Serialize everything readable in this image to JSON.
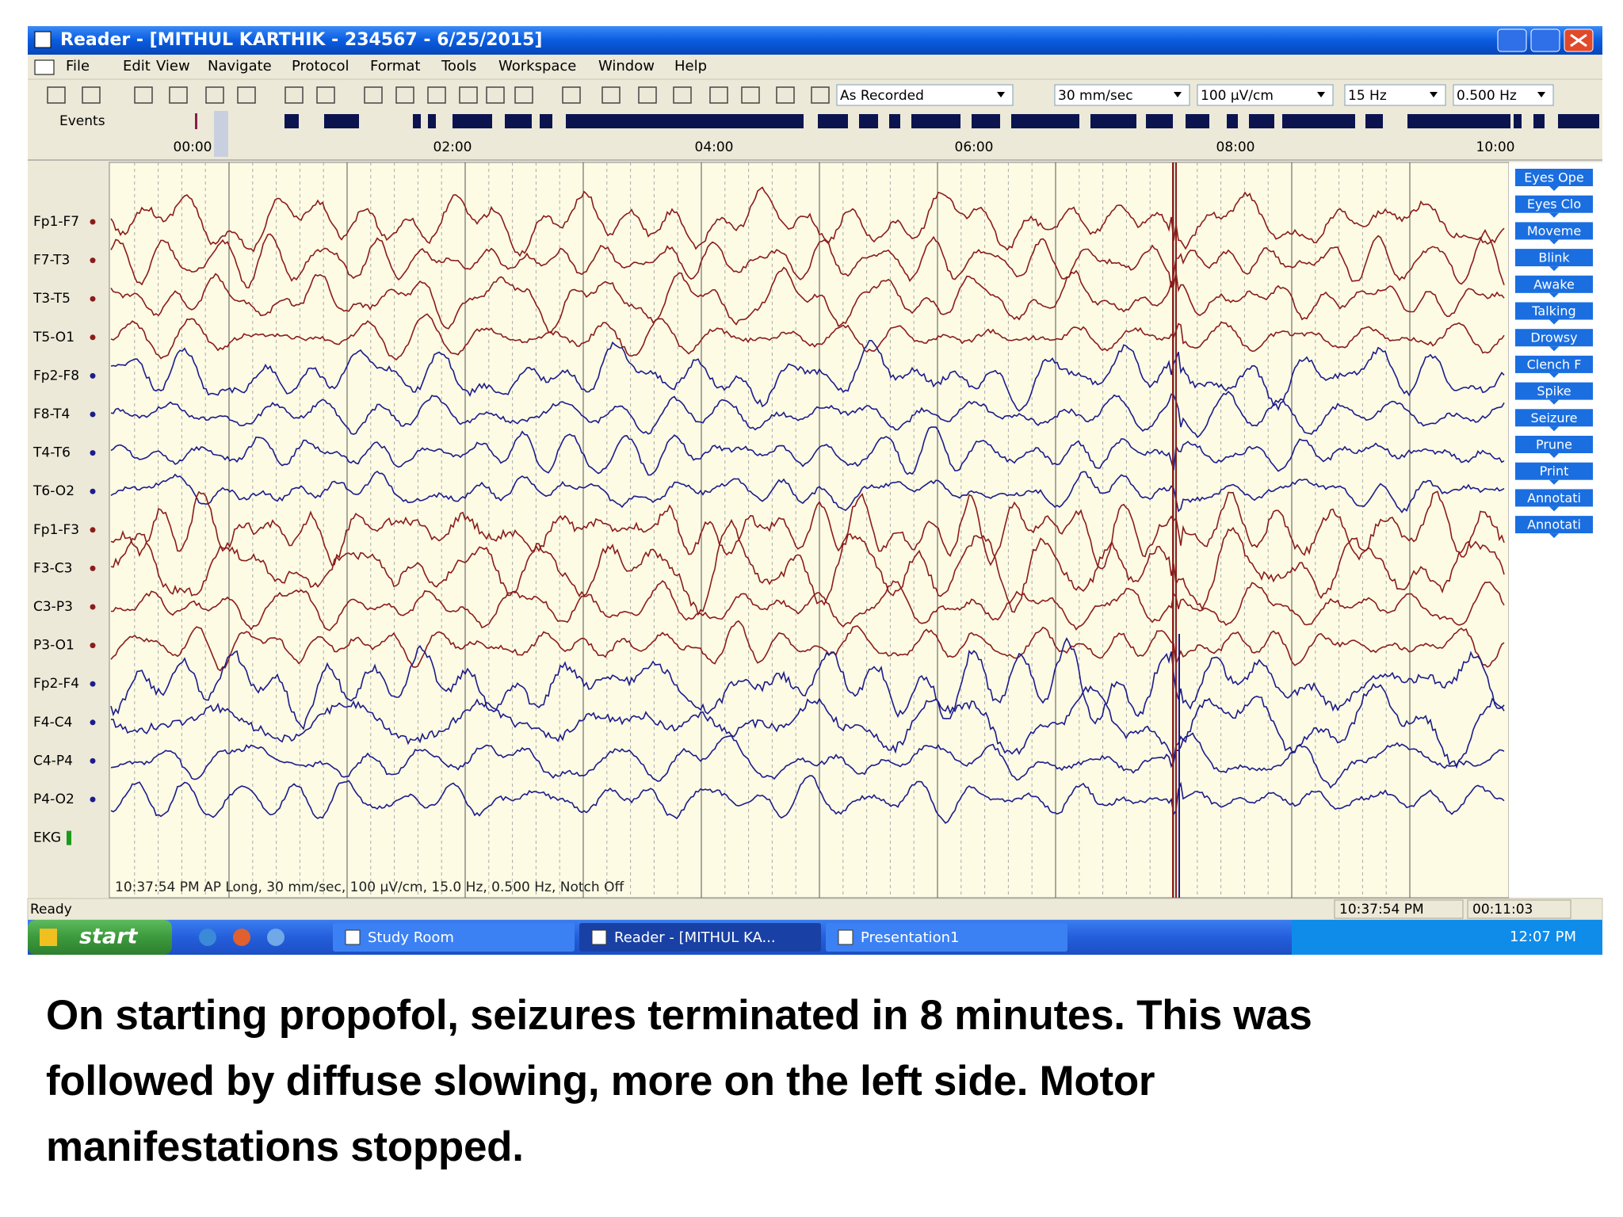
{
  "window": {
    "title": "Reader - [MITHUL KARTHIK - 234567 - 6/25/2015]",
    "menu": [
      "File",
      "Edit",
      "View",
      "Navigate",
      "Protocol",
      "Format",
      "Tools",
      "Workspace",
      "Window",
      "Help"
    ],
    "toolbar": {
      "montage": "As Recorded",
      "speed": "30 mm/sec",
      "sensitivity": "100 µV/cm",
      "high_filter": "15 Hz",
      "low_filter": "0.500 Hz"
    },
    "events_label": "Events",
    "time_ticks": [
      "00:00",
      "02:00",
      "04:00",
      "06:00",
      "08:00",
      "10:00"
    ],
    "channels": [
      {
        "label": "Fp1-F7",
        "color": "#8b1c1c"
      },
      {
        "label": "F7-T3",
        "color": "#8b1c1c"
      },
      {
        "label": "T3-T5",
        "color": "#8b1c1c"
      },
      {
        "label": "T5-O1",
        "color": "#8b1c1c"
      },
      {
        "label": "Fp2-F8",
        "color": "#1c1c8b"
      },
      {
        "label": "F8-T4",
        "color": "#1c1c8b"
      },
      {
        "label": "T4-T6",
        "color": "#1c1c8b"
      },
      {
        "label": "T6-O2",
        "color": "#1c1c8b"
      },
      {
        "label": "Fp1-F3",
        "color": "#8b1c1c"
      },
      {
        "label": "F3-C3",
        "color": "#8b1c1c"
      },
      {
        "label": "C3-P3",
        "color": "#8b1c1c"
      },
      {
        "label": "P3-O1",
        "color": "#8b1c1c"
      },
      {
        "label": "Fp2-F4",
        "color": "#1c1c8b"
      },
      {
        "label": "F4-C4",
        "color": "#1c1c8b"
      },
      {
        "label": "C4-P4",
        "color": "#1c1c8b"
      },
      {
        "label": "P4-O2",
        "color": "#1c1c8b"
      },
      {
        "label": "EKG",
        "color": "#1a9a1a"
      }
    ],
    "event_buttons": [
      "Eyes Ope",
      "Eyes Clo",
      "Moveme",
      "Blink",
      "Awake",
      "Talking",
      "Drowsy",
      "Clench F",
      "Spike",
      "Seizure",
      "Prune",
      "Print",
      "Annotati",
      "Annotati"
    ],
    "trace_status": "10:37:54 PM AP Long, 30 mm/sec, 100 µV/cm, 15.0 Hz, 0.500 Hz, Notch Off",
    "status_bar": {
      "left": "Ready",
      "time": "10:37:54 PM",
      "elapsed": "00:11:03"
    }
  },
  "taskbar": {
    "start": "start",
    "items": [
      "Study Room",
      "Reader - [MITHUL KA...",
      "Presentation1"
    ],
    "clock": "12:07 PM"
  },
  "caption": [
    "On starting propofol, seizures terminated in 8 minutes. This was",
    "followed by diffuse slowing, more on the left side. Motor",
    "manifestations stopped."
  ]
}
